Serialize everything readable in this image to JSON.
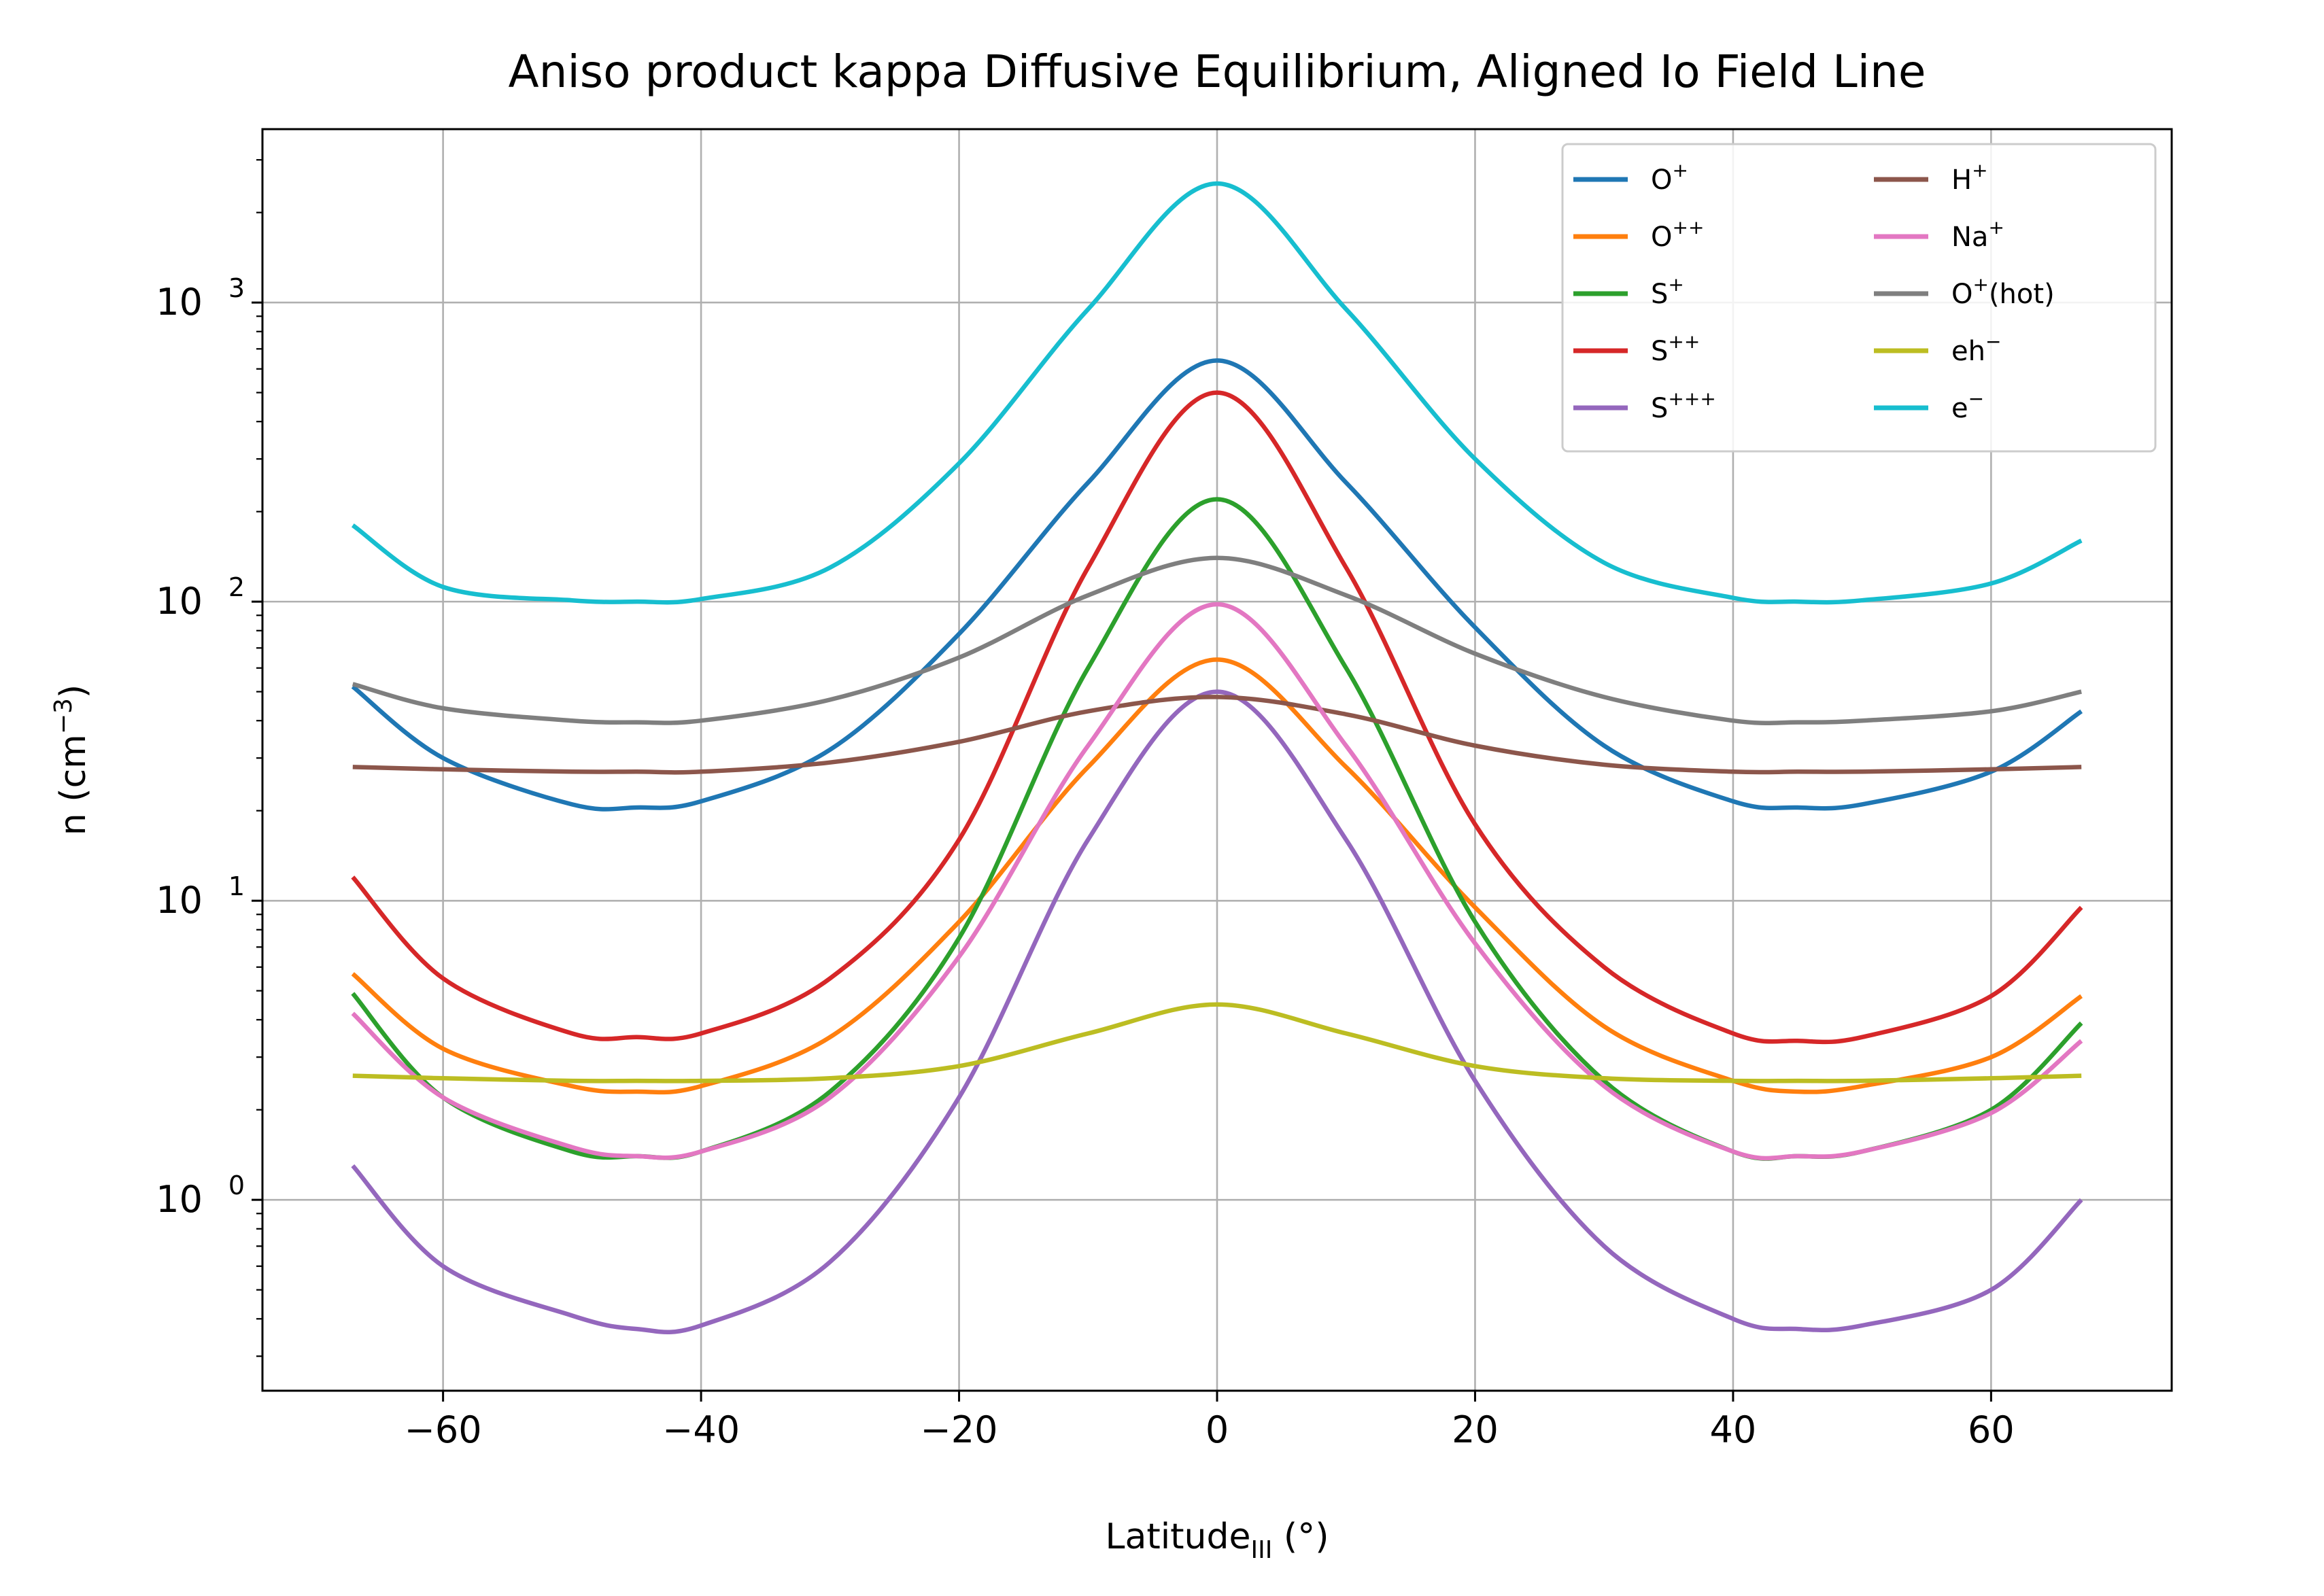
{
  "chart_data": {
    "type": "line",
    "title": "Aniso product kappa Diffusive Equilibrium, Aligned Io Field Line",
    "xlabel": {
      "base": "Latitude",
      "subscript": "III",
      "suffix": " (°)"
    },
    "ylabel": {
      "base": "n (cm",
      "superscript": "−3",
      "suffix": ")"
    },
    "x_scale": "linear",
    "y_scale": "log",
    "xlim": [
      -74,
      74
    ],
    "ylim": [
      0.23,
      3800
    ],
    "grid": true,
    "legend_placement": "top-right",
    "legend_columns": 2,
    "x_ticks": [
      {
        "value": -60,
        "label": "−60"
      },
      {
        "value": -40,
        "label": "−40"
      },
      {
        "value": -20,
        "label": "−20"
      },
      {
        "value": 0,
        "label": "0"
      },
      {
        "value": 20,
        "label": "20"
      },
      {
        "value": 40,
        "label": "40"
      },
      {
        "value": 60,
        "label": "60"
      }
    ],
    "y_ticks": [
      {
        "value": 1,
        "base": "10",
        "exp": "0"
      },
      {
        "value": 10,
        "base": "10",
        "exp": "1"
      },
      {
        "value": 100,
        "base": "10",
        "exp": "2"
      },
      {
        "value": 1000,
        "base": "10",
        "exp": "3"
      }
    ],
    "x": [
      -67,
      -60,
      -50,
      -45,
      -40,
      -30,
      -20,
      -10,
      0,
      10,
      20,
      30,
      40,
      45,
      50,
      60,
      67
    ],
    "series": [
      {
        "name_base": "O",
        "name_sup": "+",
        "color": "#1f77b4",
        "values": [
          52,
          30,
          21,
          20.5,
          21.5,
          32,
          78,
          250,
          640,
          250,
          82,
          33,
          21.5,
          20.5,
          21,
          27,
          43
        ]
      },
      {
        "name_base": "O",
        "name_sup": "++",
        "color": "#ff7f0e",
        "values": [
          5.7,
          3.2,
          2.4,
          2.3,
          2.4,
          3.5,
          8.5,
          28,
          64,
          28,
          9.5,
          3.8,
          2.5,
          2.3,
          2.4,
          3.0,
          4.8
        ]
      },
      {
        "name_base": "S",
        "name_sup": "+",
        "color": "#2ca02c",
        "values": [
          4.9,
          2.2,
          1.45,
          1.4,
          1.45,
          2.3,
          7.5,
          60,
          220,
          60,
          8.5,
          2.5,
          1.45,
          1.4,
          1.45,
          2.0,
          3.9
        ]
      },
      {
        "name_base": "S",
        "name_sup": "++",
        "color": "#d62728",
        "values": [
          12,
          5.5,
          3.6,
          3.5,
          3.6,
          5.5,
          16,
          130,
          500,
          130,
          18,
          6,
          3.6,
          3.4,
          3.5,
          4.8,
          9.5
        ]
      },
      {
        "name_base": "S",
        "name_sup": "+++",
        "color": "#9467bd",
        "values": [
          1.3,
          0.6,
          0.41,
          0.37,
          0.38,
          0.62,
          2.2,
          16,
          50,
          16,
          2.5,
          0.7,
          0.4,
          0.37,
          0.38,
          0.5,
          1.0
        ]
      },
      {
        "name_base": "H",
        "name_sup": "+",
        "color": "#8c564b",
        "values": [
          28,
          27.5,
          27,
          27,
          27,
          29,
          34,
          43,
          48,
          42,
          33,
          28.5,
          27,
          27,
          27,
          27.5,
          28
        ]
      },
      {
        "name_base": "Na",
        "name_sup": "+",
        "color": "#e377c2",
        "values": [
          4.2,
          2.2,
          1.5,
          1.4,
          1.45,
          2.2,
          6.5,
          33,
          98,
          33,
          7.2,
          2.4,
          1.45,
          1.4,
          1.45,
          1.95,
          3.4
        ]
      },
      {
        "name_base": "O",
        "name_sup": "+",
        "name_suffix": "(hot)",
        "color": "#7f7f7f",
        "values": [
          53,
          44,
          40,
          39.5,
          40,
          47,
          65,
          105,
          140,
          105,
          67,
          48,
          40,
          39.5,
          40,
          43,
          50
        ]
      },
      {
        "name_base": "eh",
        "name_sup": "−",
        "color": "#bcbd22",
        "values": [
          2.6,
          2.55,
          2.5,
          2.5,
          2.5,
          2.55,
          2.8,
          3.6,
          4.5,
          3.6,
          2.8,
          2.55,
          2.5,
          2.5,
          2.5,
          2.55,
          2.6
        ]
      },
      {
        "name_base": "e",
        "name_sup": "−",
        "color": "#17becf",
        "values": [
          180,
          112,
          101,
          100,
          102,
          130,
          290,
          950,
          2500,
          950,
          300,
          135,
          103,
          100,
          101,
          115,
          160
        ]
      }
    ]
  }
}
